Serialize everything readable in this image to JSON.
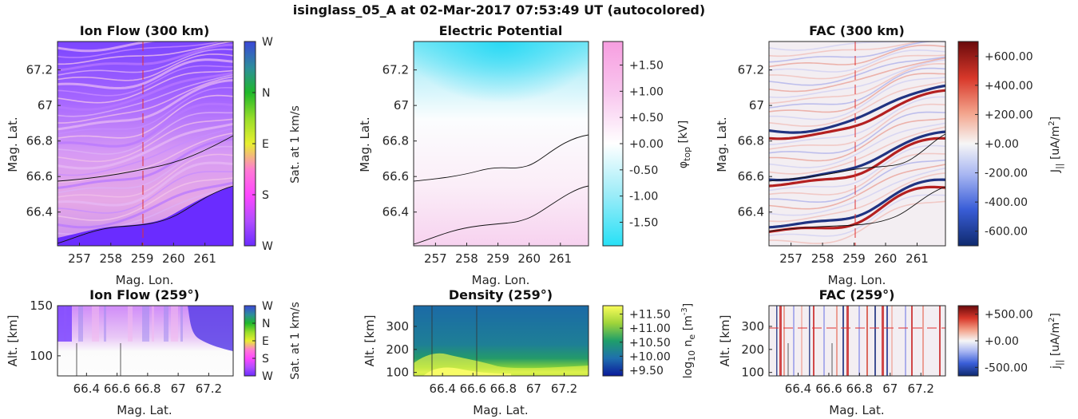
{
  "figure": {
    "title": "isinglass_05_A at 02-Mar-2017 07:53:49 UT (autocolored)"
  },
  "chart_data": [
    {
      "id": "ion-flow-300",
      "type": "heatmap",
      "title": "Ion Flow (300 km)",
      "xlabel": "Mag. Lon.",
      "ylabel": "Mag. Lat.",
      "xlim": [
        256.3,
        261.9
      ],
      "ylim": [
        66.21,
        67.36
      ],
      "xticks": [
        "257",
        "258",
        "259",
        "260",
        "261"
      ],
      "xtick_values": [
        257,
        258,
        259,
        260,
        261
      ],
      "yticks": [
        "66.4",
        "66.6",
        "66.8",
        "67",
        "67.2"
      ],
      "ytick_values": [
        66.4,
        66.6,
        66.8,
        67.0,
        67.2
      ],
      "colorbar": {
        "label": "Sat. at 1 km/s",
        "ticks": [
          "W",
          "N",
          "E",
          "S",
          "W"
        ]
      },
      "cut_line_lon": 259
    },
    {
      "id": "electric-potential",
      "type": "heatmap",
      "title": "Electric Potential",
      "xlabel": "Mag. Lon.",
      "ylabel": "Mag. Lat.",
      "xlim": [
        256.3,
        261.9
      ],
      "ylim": [
        66.21,
        67.36
      ],
      "xticks": [
        "257",
        "258",
        "259",
        "260",
        "261"
      ],
      "xtick_values": [
        257,
        258,
        259,
        260,
        261
      ],
      "yticks": [
        "66.4",
        "66.6",
        "66.8",
        "67",
        "67.2"
      ],
      "ytick_values": [
        66.4,
        66.6,
        66.8,
        67.0,
        67.2
      ],
      "colorbar": {
        "label": "φ_top [kV]",
        "ticks": [
          "+1.50",
          "+1.00",
          "+0.50",
          "+0.00",
          "-0.50",
          "-1.00",
          "-1.50"
        ],
        "tick_values": [
          1.5,
          1.0,
          0.5,
          0.0,
          -0.5,
          -1.0,
          -1.5
        ],
        "range": [
          -1.95,
          1.95
        ]
      }
    },
    {
      "id": "fac-300",
      "type": "heatmap",
      "title": "FAC (300 km)",
      "xlabel": "Mag. Lon.",
      "ylabel": "Mag. Lat.",
      "xlim": [
        256.3,
        261.9
      ],
      "ylim": [
        66.21,
        67.36
      ],
      "xticks": [
        "257",
        "258",
        "259",
        "260",
        "261"
      ],
      "xtick_values": [
        257,
        258,
        259,
        260,
        261
      ],
      "yticks": [
        "66.4",
        "66.6",
        "66.8",
        "67",
        "67.2"
      ],
      "ytick_values": [
        66.4,
        66.6,
        66.8,
        67.0,
        67.2
      ],
      "colorbar": {
        "label": "J_|| [uA/m^2]",
        "ticks": [
          "+600.00",
          "+400.00",
          "+200.00",
          "+0.00",
          "-200.00",
          "-400.00",
          "-600.00"
        ],
        "tick_values": [
          600,
          400,
          200,
          0,
          -200,
          -400,
          -600
        ],
        "range": [
          -700,
          700
        ]
      },
      "cut_line_lon": 259
    },
    {
      "id": "ion-flow-259",
      "type": "heatmap",
      "title": "Ion Flow (259°)",
      "xlabel": "Mag. Lat.",
      "ylabel": "Alt. [km]",
      "xlim": [
        66.21,
        67.36
      ],
      "ylim": [
        80,
        150
      ],
      "xticks": [
        "66.4",
        "66.6",
        "66.8",
        "67",
        "67.2"
      ],
      "xtick_values": [
        66.4,
        66.6,
        66.8,
        67.0,
        67.2
      ],
      "yticks": [
        "100",
        "150"
      ],
      "ytick_values": [
        100,
        150
      ],
      "colorbar": {
        "label": "Sat. at 1 km/s",
        "ticks": [
          "W",
          "N",
          "E",
          "S",
          "W"
        ]
      }
    },
    {
      "id": "density-259",
      "type": "heatmap",
      "title": "Density (259°)",
      "xlabel": "Mag. Lat.",
      "ylabel": "Alt. [km]",
      "xlim": [
        66.21,
        67.36
      ],
      "ylim": [
        85,
        390
      ],
      "xticks": [
        "66.4",
        "66.6",
        "66.8",
        "67",
        "67.2"
      ],
      "xtick_values": [
        66.4,
        66.6,
        66.8,
        67.0,
        67.2
      ],
      "yticks": [
        "100",
        "200",
        "300"
      ],
      "ytick_values": [
        100,
        200,
        300
      ],
      "colorbar": {
        "label": "log10 n_e [m^-3]",
        "ticks": [
          "+11.50",
          "+11.00",
          "+10.50",
          "+10.00",
          "+9.50"
        ],
        "tick_values": [
          11.5,
          11.0,
          10.5,
          10.0,
          9.5
        ],
        "range": [
          9.3,
          11.8
        ]
      }
    },
    {
      "id": "fac-259",
      "type": "heatmap",
      "title": "FAC (259°)",
      "xlabel": "Mag. Lat.",
      "ylabel": "Alt. [km]",
      "xlim": [
        66.21,
        67.36
      ],
      "ylim": [
        85,
        390
      ],
      "xticks": [
        "66.4",
        "66.6",
        "66.8",
        "67",
        "67.2"
      ],
      "xtick_values": [
        66.4,
        66.6,
        66.8,
        67.0,
        67.2
      ],
      "yticks": [
        "100",
        "200",
        "300"
      ],
      "ytick_values": [
        100,
        200,
        300
      ],
      "colorbar": {
        "label": "j_|| [uA/m^2]",
        "ticks": [
          "+500.00",
          "+0.00",
          "-500.00"
        ],
        "tick_values": [
          500,
          0,
          -500
        ],
        "range": [
          -660,
          660
        ]
      },
      "cut_line_alt": 300
    }
  ]
}
